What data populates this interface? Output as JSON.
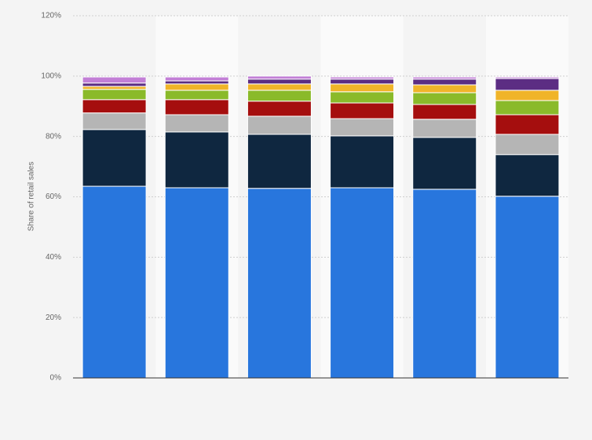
{
  "chart_data": {
    "type": "stacked-bar",
    "y_label": "Share of retail sales",
    "categories": [
      null,
      null,
      null,
      null,
      null,
      null
    ],
    "series": [
      {
        "color": "#2876dd",
        "values": [
          63.5,
          63.0,
          62.8,
          63.0,
          62.5,
          60.2
        ]
      },
      {
        "color": "#0f2740",
        "values": [
          18.8,
          18.5,
          17.9,
          17.2,
          17.2,
          13.8
        ]
      },
      {
        "color": "#b5b5b5",
        "values": [
          5.5,
          5.7,
          6.0,
          5.7,
          6.0,
          6.7
        ]
      },
      {
        "color": "#a50e0e",
        "values": [
          4.4,
          5.0,
          5.0,
          5.2,
          4.9,
          6.5
        ]
      },
      {
        "color": "#8aba2a",
        "values": [
          3.4,
          3.1,
          3.6,
          3.7,
          3.9,
          4.7
        ]
      },
      {
        "color": "#f0b429",
        "values": [
          1.0,
          2.1,
          2.1,
          2.6,
          2.6,
          3.4
        ]
      },
      {
        "color": "#5c2d83",
        "values": [
          1.1,
          1.0,
          1.6,
          1.6,
          1.9,
          3.9
        ]
      },
      {
        "color": "#c27fd6",
        "values": [
          2.0,
          1.3,
          1.0,
          0.7,
          0.7,
          0.5
        ]
      }
    ],
    "ylim": [
      0,
      120
    ],
    "yticks": [
      {
        "value": 0,
        "label": "0%"
      },
      {
        "value": 20,
        "label": "20%"
      },
      {
        "value": 40,
        "label": "40%"
      },
      {
        "value": 60,
        "label": "60%"
      },
      {
        "value": 80,
        "label": "80%"
      },
      {
        "value": 100,
        "label": "100%"
      },
      {
        "value": 120,
        "label": "120%"
      }
    ],
    "grid": true
  }
}
